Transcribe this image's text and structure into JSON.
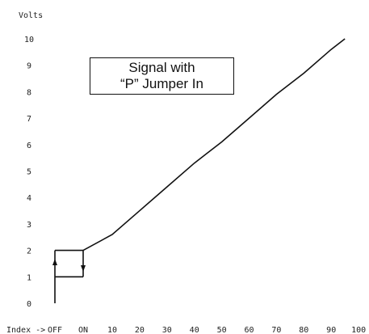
{
  "chart_data": {
    "type": "line",
    "ylabel": "Volts",
    "xlabel_prefix": "Index ->",
    "x_ticks": [
      "OFF",
      "ON",
      "10",
      "20",
      "30",
      "40",
      "50",
      "60",
      "70",
      "80",
      "90",
      "100"
    ],
    "y_ticks": [
      "0",
      "1",
      "2",
      "3",
      "4",
      "5",
      "6",
      "7",
      "8",
      "9",
      "10"
    ],
    "ylim": [
      0,
      10
    ],
    "grid": false,
    "series": [
      {
        "points": [
          {
            "x": "ON",
            "y": 2
          },
          {
            "x": 10,
            "y": 2.6
          },
          {
            "x": 20,
            "y": 3.5
          },
          {
            "x": 30,
            "y": 4.4
          },
          {
            "x": 40,
            "y": 5.3
          },
          {
            "x": 50,
            "y": 6.1
          },
          {
            "x": 60,
            "y": 7.0
          },
          {
            "x": 70,
            "y": 7.9
          },
          {
            "x": 80,
            "y": 8.7
          },
          {
            "x": 90,
            "y": 9.6
          },
          {
            "x": 95,
            "y": 10
          }
        ]
      }
    ],
    "switch_loop": {
      "off_start": 0,
      "low": 1,
      "high": 2,
      "up_arrow_at": "OFF",
      "down_arrow_at": "ON"
    },
    "annotation": {
      "line1": "Signal with",
      "line2": "“P” Jumper In"
    }
  }
}
